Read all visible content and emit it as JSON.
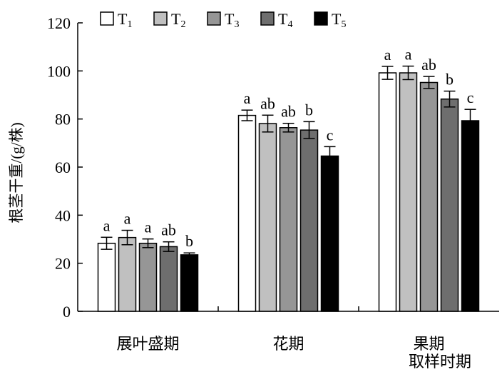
{
  "chart_data": {
    "type": "bar",
    "title": "",
    "ylabel": "根茎干重/(g/株)",
    "xlabel": "取样时期",
    "ylim": [
      0,
      120
    ],
    "yticks": [
      0,
      20,
      40,
      60,
      80,
      100,
      120
    ],
    "grid": false,
    "legend_position": "top",
    "categories": [
      "展叶盛期",
      "花期",
      "果期"
    ],
    "series": [
      {
        "name": "T",
        "subscript": "1",
        "color": "#ffffff",
        "values": [
          28.3,
          81.5,
          99.2
        ],
        "errors": [
          2.5,
          2.2,
          2.7
        ],
        "letters": [
          "a",
          "a",
          "a"
        ]
      },
      {
        "name": "T",
        "subscript": "2",
        "color": "#c0c0c0",
        "values": [
          30.7,
          78.1,
          99.2
        ],
        "errors": [
          3.0,
          3.5,
          2.8
        ],
        "letters": [
          "a",
          "ab",
          "a"
        ]
      },
      {
        "name": "T",
        "subscript": "3",
        "color": "#969696",
        "values": [
          28.3,
          76.4,
          95.2
        ],
        "errors": [
          1.8,
          1.8,
          2.5
        ],
        "letters": [
          "a",
          "ab",
          "ab"
        ]
      },
      {
        "name": "T",
        "subscript": "4",
        "color": "#6e6e6e",
        "values": [
          26.9,
          75.4,
          88.3
        ],
        "errors": [
          2.0,
          3.5,
          3.3
        ],
        "letters": [
          "ab",
          "b",
          "b"
        ]
      },
      {
        "name": "T",
        "subscript": "5",
        "color": "#000000",
        "values": [
          23.5,
          64.6,
          79.3
        ],
        "errors": [
          0.8,
          3.9,
          4.7
        ],
        "letters": [
          "b",
          "c",
          "c"
        ]
      }
    ]
  }
}
